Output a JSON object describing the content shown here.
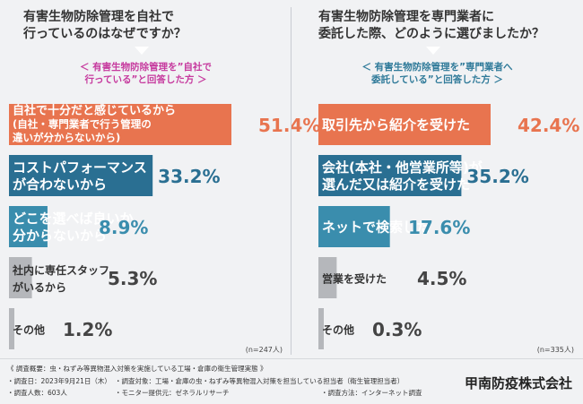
{
  "chart_data": [
    {
      "type": "bar",
      "orientation": "horizontal",
      "title": [
        "有害生物防除管理を自社で",
        "行っているのはなぜですか？"
      ],
      "subtitle": [
        "＜ 有害生物防除管理を”自社で",
        "行っている”と回答した方 ＞"
      ],
      "categories": [
        [
          "自社で十分だと感じているから",
          "(自社・専門業者で行う管理の",
          "違いが分からないから)"
        ],
        [
          "コストパフォーマンス",
          "が合わないから"
        ],
        [
          "どこを選べば良いか",
          "分からないから"
        ],
        [
          "社内に専任スタッフ",
          "がいるから"
        ],
        [
          "その他"
        ]
      ],
      "values": [
        51.4,
        33.2,
        8.9,
        5.3,
        1.2
      ],
      "labels": [
        "51.4%",
        "33.2%",
        "8.9%",
        "5.3%",
        "1.2%"
      ],
      "colors": [
        "#e8744f",
        "#2a6f92",
        "#3a8dad",
        "#b5b7bb",
        "#b5b7bb"
      ],
      "value_colors": [
        "#e8744f",
        "#2a6f92",
        "#3a8dad",
        "#444444",
        "#444444"
      ],
      "sample": "(n=247人)"
    },
    {
      "type": "bar",
      "orientation": "horizontal",
      "title": [
        "有害生物防除管理を専門業者に",
        "委託した際、どのように選びましたか？"
      ],
      "subtitle": [
        "＜ 有害生物防除管理を”専門業者へ",
        "委託している”と回答した方 ＞"
      ],
      "categories": [
        [
          "取引先から紹介を受けた"
        ],
        [
          "会社(本社・他営業所等)が",
          "選んだ又は紹介を受けた"
        ],
        [
          "ネットで検索した"
        ],
        [
          "営業を受けた"
        ],
        [
          "その他"
        ]
      ],
      "values": [
        42.4,
        35.2,
        17.6,
        4.5,
        0.3
      ],
      "labels": [
        "42.4%",
        "35.2%",
        "17.6%",
        "4.5%",
        "0.3%"
      ],
      "colors": [
        "#e8744f",
        "#2a6f92",
        "#3a8dad",
        "#b5b7bb",
        "#b5b7bb"
      ],
      "value_colors": [
        "#e8744f",
        "#2a6f92",
        "#3a8dad",
        "#444444",
        "#444444"
      ],
      "sample": "(n=335人)"
    }
  ],
  "footer": {
    "overview": "《 調査概要：虫・ねずみ等異物混入対策を実施している工場・倉庫の衛生管理実態 》",
    "date": "・調査日：2023年9月21日（木）",
    "people": "・調査人数：603人",
    "target": "・調査対象：工場・倉庫の虫・ねずみ等異物混入対策を担当している担当者（衛生管理担当者）",
    "monitor": "・モニター提供元：ゼネラルリサーチ",
    "method": "・調査方法：インターネット調査",
    "company": "甲南防疫株式会社"
  }
}
